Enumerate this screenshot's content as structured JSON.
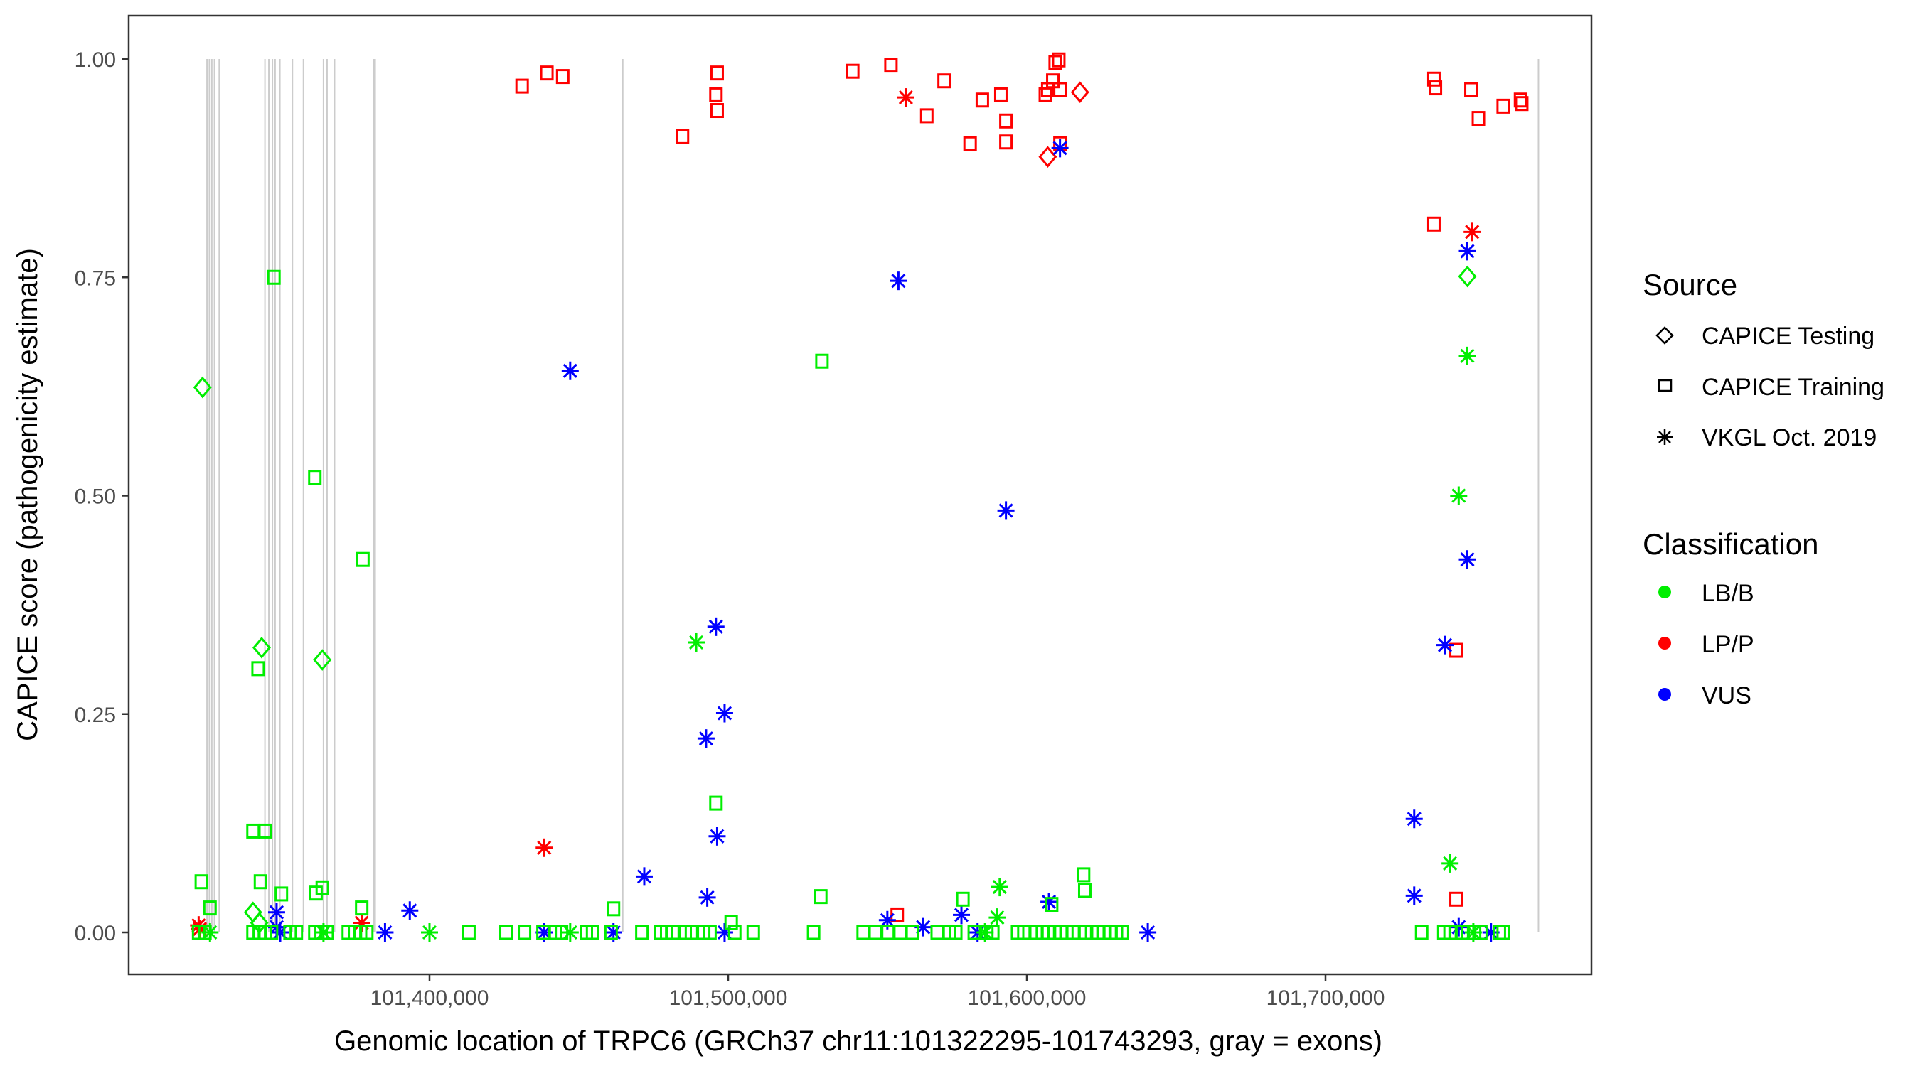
{
  "chart_data": {
    "type": "scatter",
    "xlabel": "Genomic location of TRPC6 (GRCh37 chr11:101322295-101743293, gray = exons)",
    "ylabel": "CAPICE score (pathogenicity estimate)",
    "xlim": [
      101302000,
      101790000
    ],
    "ylim": [
      -0.05,
      1.05
    ],
    "x_ticks": [
      101400000,
      101500000,
      101600000,
      101700000
    ],
    "x_tick_labels": [
      "101,400,000",
      "101,500,000",
      "101,600,000",
      "101,700,000"
    ],
    "y_ticks": [
      0,
      0.25,
      0.5,
      0.75,
      1.0
    ],
    "y_tick_labels": [
      "0.00",
      "0.25",
      "0.50",
      "0.75",
      "1.00"
    ],
    "grid": false,
    "legend_position": "right",
    "legend": {
      "source_title": "Source",
      "source_items": [
        {
          "label": "CAPICE Testing",
          "shape": "diamond"
        },
        {
          "label": "CAPICE Training",
          "shape": "square"
        },
        {
          "label": "VKGL Oct. 2019",
          "shape": "star"
        }
      ],
      "class_title": "Classification",
      "class_items": [
        {
          "label": "LB/B",
          "color": "#00ee00"
        },
        {
          "label": "LP/P",
          "color": "#ff0000"
        },
        {
          "label": "VUS",
          "color": "#0000ff"
        }
      ]
    },
    "exons": [
      101325500,
      101326300,
      101327100,
      101328000,
      101329600,
      101344900,
      101346200,
      101347400,
      101348300,
      101349900,
      101354100,
      101357800,
      101364500,
      101365700,
      101368200,
      101381400,
      101381800,
      101464700,
      101771300
    ],
    "series": [
      {
        "name": "LP/P",
        "color": "#ff0000",
        "points": [
          [
            "square",
            101431000,
            0.969
          ],
          [
            "square",
            101439300,
            0.984
          ],
          [
            "square",
            101444600,
            0.98
          ],
          [
            "square",
            101484700,
            0.911
          ],
          [
            "square",
            101496300,
            0.984
          ],
          [
            "square",
            101495900,
            0.959
          ],
          [
            "square",
            101496300,
            0.941
          ],
          [
            "square",
            101541700,
            0.986
          ],
          [
            "square",
            101554500,
            0.993
          ],
          [
            "square",
            101566500,
            0.935
          ],
          [
            "square",
            101572300,
            0.975
          ],
          [
            "square",
            101581000,
            0.903
          ],
          [
            "square",
            101585100,
            0.953
          ],
          [
            "square",
            101591300,
            0.959
          ],
          [
            "square",
            101593000,
            0.929
          ],
          [
            "square",
            101593000,
            0.905
          ],
          [
            "square",
            101606200,
            0.959
          ],
          [
            "square",
            101607000,
            0.965
          ],
          [
            "square",
            101608700,
            0.975
          ],
          [
            "square",
            101609500,
            0.996
          ],
          [
            "square",
            101610700,
            0.999
          ],
          [
            "square",
            101611100,
            0.965
          ],
          [
            "square",
            101611100,
            0.903
          ],
          [
            "square",
            101736300,
            0.977
          ],
          [
            "square",
            101736800,
            0.967
          ],
          [
            "square",
            101748700,
            0.965
          ],
          [
            "square",
            101751200,
            0.932
          ],
          [
            "square",
            101759500,
            0.946
          ],
          [
            "square",
            101765300,
            0.953
          ],
          [
            "square",
            101765700,
            0.949
          ],
          [
            "square",
            101736300,
            0.811
          ],
          [
            "square",
            101743700,
            0.323
          ],
          [
            "square",
            101743700,
            0.038
          ],
          [
            "square",
            101556600,
            0.02
          ],
          [
            "diamond",
            101617800,
            0.962
          ],
          [
            "diamond",
            101607000,
            0.888
          ],
          [
            "star",
            101559500,
            0.956
          ],
          [
            "star",
            101438400,
            0.097
          ],
          [
            "star",
            101749100,
            0.802
          ],
          [
            "star",
            101322700,
            0.008
          ],
          [
            "star",
            101323100,
            0.004
          ],
          [
            "star",
            101377300,
            0.011
          ]
        ]
      },
      {
        "name": "VUS",
        "color": "#0000ff",
        "points": [
          [
            "star",
            101611100,
            0.898
          ],
          [
            "star",
            101557000,
            0.746
          ],
          [
            "star",
            101447100,
            0.643
          ],
          [
            "star",
            101593000,
            0.483
          ],
          [
            "star",
            101495900,
            0.35
          ],
          [
            "star",
            101498800,
            0.251
          ],
          [
            "star",
            101492600,
            0.222
          ],
          [
            "star",
            101496300,
            0.11
          ],
          [
            "star",
            101493000,
            0.04
          ],
          [
            "star",
            101471900,
            0.064
          ],
          [
            "star",
            101747500,
            0.78
          ],
          [
            "star",
            101747500,
            0.427
          ],
          [
            "star",
            101740000,
            0.329
          ],
          [
            "star",
            101729700,
            0.13
          ],
          [
            "star",
            101729700,
            0.042
          ],
          [
            "star",
            101393400,
            0.025
          ],
          [
            "star",
            101385100,
            0.0
          ],
          [
            "star",
            101348800,
            0.023
          ],
          [
            "star",
            101348800,
            0.006
          ],
          [
            "star",
            101350000,
            0.0
          ],
          [
            "star",
            101438400,
            0.0
          ],
          [
            "star",
            101461600,
            0.0
          ],
          [
            "star",
            101498800,
            0.0
          ],
          [
            "star",
            101553300,
            0.014
          ],
          [
            "star",
            101565300,
            0.006
          ],
          [
            "star",
            101578100,
            0.02
          ],
          [
            "star",
            101583500,
            0.0
          ],
          [
            "star",
            101607400,
            0.035
          ],
          [
            "star",
            101640500,
            0.0
          ],
          [
            "star",
            101744600,
            0.006
          ],
          [
            "star",
            101755400,
            0.0
          ]
        ]
      },
      {
        "name": "LB/B",
        "color": "#00ee00",
        "points": [
          [
            "diamond",
            101324000,
            0.624
          ],
          [
            "diamond",
            101343800,
            0.326
          ],
          [
            "diamond",
            101364100,
            0.312
          ],
          [
            "diamond",
            101747500,
            0.751
          ],
          [
            "diamond",
            101340900,
            0.023
          ],
          [
            "diamond",
            101343000,
            0.011
          ],
          [
            "star",
            101489300,
            0.332
          ],
          [
            "star",
            101744600,
            0.5
          ],
          [
            "star",
            101747500,
            0.66
          ],
          [
            "star",
            101741700,
            0.079
          ],
          [
            "star",
            101590900,
            0.052
          ],
          [
            "star",
            101590100,
            0.017
          ],
          [
            "star",
            101326500,
            0.0
          ],
          [
            "star",
            101400000,
            0.0
          ],
          [
            "star",
            101447100,
            0.0
          ],
          [
            "star",
            101586000,
            0.0
          ],
          [
            "star",
            101364500,
            0.0
          ],
          [
            "star",
            101749500,
            0.0
          ],
          [
            "square",
            101347900,
            0.75
          ],
          [
            "square",
            101361600,
            0.521
          ],
          [
            "square",
            101377700,
            0.427
          ],
          [
            "square",
            101342600,
            0.302
          ],
          [
            "square",
            101531400,
            0.654
          ],
          [
            "square",
            101340900,
            0.116
          ],
          [
            "square",
            101345000,
            0.116
          ],
          [
            "square",
            101495900,
            0.148
          ],
          [
            "square",
            101323600,
            0.058
          ],
          [
            "square",
            101343400,
            0.058
          ],
          [
            "square",
            101619000,
            0.066
          ],
          [
            "square",
            101619400,
            0.048
          ],
          [
            "square",
            101531000,
            0.041
          ],
          [
            "square",
            101350400,
            0.044
          ],
          [
            "square",
            101364100,
            0.051
          ],
          [
            "square",
            101377300,
            0.028
          ],
          [
            "square",
            101461600,
            0.027
          ],
          [
            "square",
            101578600,
            0.038
          ],
          [
            "square",
            101608300,
            0.032
          ],
          [
            "square",
            101501000,
            0.011
          ],
          [
            "square",
            101326500,
            0.028
          ],
          [
            "square",
            101362000,
            0.045
          ],
          [
            "square",
            101322700,
            0.0
          ],
          [
            "square",
            101324800,
            0.0
          ],
          [
            "square",
            101340900,
            0.0
          ],
          [
            "square",
            101343000,
            0.0
          ],
          [
            "square",
            101345000,
            0.0
          ],
          [
            "square",
            101347100,
            0.0
          ],
          [
            "square",
            101353300,
            0.0
          ],
          [
            "square",
            101355400,
            0.0
          ],
          [
            "square",
            101361600,
            0.0
          ],
          [
            "square",
            101363700,
            0.0
          ],
          [
            "square",
            101365700,
            0.0
          ],
          [
            "square",
            101372800,
            0.0
          ],
          [
            "square",
            101374900,
            0.0
          ],
          [
            "square",
            101376900,
            0.0
          ],
          [
            "square",
            101379000,
            0.0
          ],
          [
            "square",
            101413200,
            0.0
          ],
          [
            "square",
            101425600,
            0.0
          ],
          [
            "square",
            101431800,
            0.0
          ],
          [
            "square",
            101438000,
            0.0
          ],
          [
            "square",
            101442200,
            0.0
          ],
          [
            "square",
            101444200,
            0.0
          ],
          [
            "square",
            101452500,
            0.0
          ],
          [
            "square",
            101454600,
            0.0
          ],
          [
            "square",
            101460800,
            0.0
          ],
          [
            "square",
            101471100,
            0.0
          ],
          [
            "square",
            101477300,
            0.0
          ],
          [
            "square",
            101479400,
            0.0
          ],
          [
            "square",
            101481500,
            0.0
          ],
          [
            "square",
            101485600,
            0.0
          ],
          [
            "square",
            101487700,
            0.0
          ],
          [
            "square",
            101491800,
            0.0
          ],
          [
            "square",
            101493900,
            0.0
          ],
          [
            "square",
            101502200,
            0.0
          ],
          [
            "square",
            101508400,
            0.0
          ],
          [
            "square",
            101528600,
            0.0
          ],
          [
            "square",
            101545200,
            0.0
          ],
          [
            "square",
            101549300,
            0.0
          ],
          [
            "square",
            101553500,
            0.0
          ],
          [
            "square",
            101557600,
            0.0
          ],
          [
            "square",
            101561700,
            0.0
          ],
          [
            "square",
            101570000,
            0.0
          ],
          [
            "square",
            101574100,
            0.0
          ],
          [
            "square",
            101576200,
            0.0
          ],
          [
            "square",
            101582400,
            0.0
          ],
          [
            "square",
            101586600,
            0.0
          ],
          [
            "square",
            101588600,
            0.0
          ],
          [
            "square",
            101596900,
            0.0
          ],
          [
            "square",
            101599000,
            0.0
          ],
          [
            "square",
            101603100,
            0.0
          ],
          [
            "square",
            101605200,
            0.0
          ],
          [
            "square",
            101607200,
            0.0
          ],
          [
            "square",
            101609300,
            0.0
          ],
          [
            "square",
            101611400,
            0.0
          ],
          [
            "square",
            101613400,
            0.0
          ],
          [
            "square",
            101615500,
            0.0
          ],
          [
            "square",
            101619600,
            0.0
          ],
          [
            "square",
            101621700,
            0.0
          ],
          [
            "square",
            101623800,
            0.0
          ],
          [
            "square",
            101625800,
            0.0
          ],
          [
            "square",
            101627900,
            0.0
          ],
          [
            "square",
            101630000,
            0.0
          ],
          [
            "square",
            101632000,
            0.0
          ],
          [
            "square",
            101732200,
            0.0
          ],
          [
            "square",
            101739600,
            0.0
          ],
          [
            "square",
            101741700,
            0.0
          ],
          [
            "square",
            101743700,
            0.0
          ],
          [
            "square",
            101745800,
            0.0
          ],
          [
            "square",
            101749900,
            0.0
          ],
          [
            "square",
            101752000,
            0.0
          ],
          [
            "square",
            101758200,
            0.0
          ],
          [
            "square",
            101759500,
            0.0
          ]
        ]
      }
    ]
  }
}
